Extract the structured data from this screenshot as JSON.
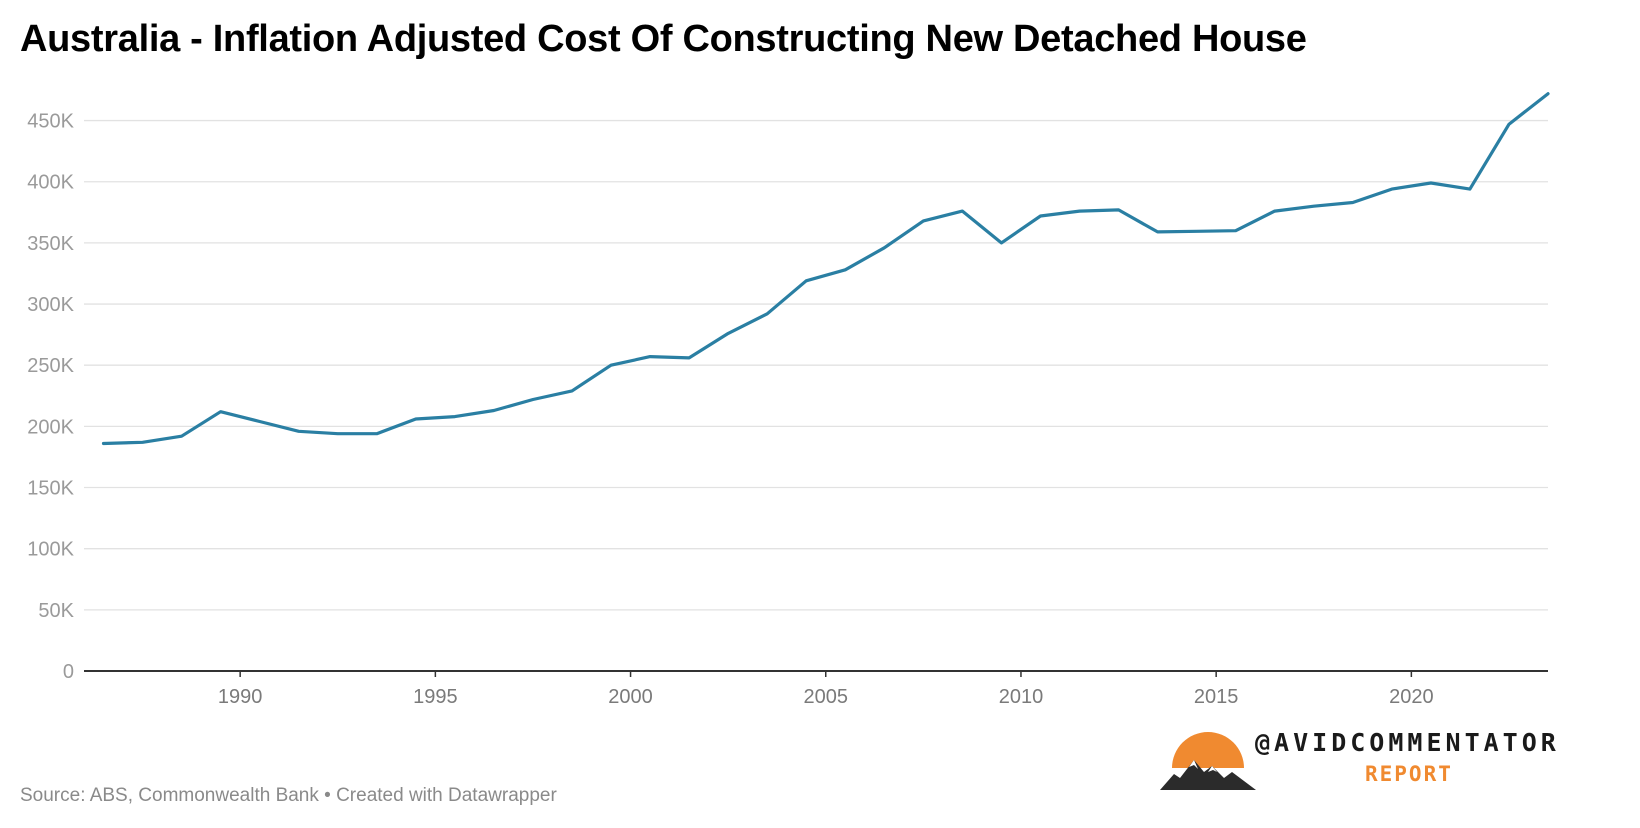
{
  "chart_data": {
    "type": "line",
    "title": "Australia - Inflation Adjusted Cost Of Constructing New Detached House",
    "xlabel": "",
    "ylabel": "",
    "xlim": [
      1986,
      2023.5
    ],
    "ylim": [
      0,
      475000
    ],
    "x_ticks": [
      "1990",
      "1995",
      "2000",
      "2005",
      "2010",
      "2015",
      "2020"
    ],
    "y_ticks": [
      "0",
      "50K",
      "100K",
      "150K",
      "200K",
      "250K",
      "300K",
      "350K",
      "400K",
      "450K"
    ],
    "grid": true,
    "legend": "none",
    "color": "#2a7fa3",
    "series": [
      {
        "x": [
          1986.5,
          1987.5,
          1988.5,
          1989.5,
          1990.5,
          1991.5,
          1992.5,
          1993.5,
          1994.5,
          1995.5,
          1996.5,
          1997.5,
          1998.5,
          1999.5,
          2000.5,
          2001.5,
          2002.5,
          2003.5,
          2004.5,
          2005.5,
          2006.5,
          2007.5,
          2008.5,
          2009.5,
          2010.5,
          2011.5,
          2012.5,
          2013.5,
          2014.5,
          2015.5,
          2016.5,
          2017.5,
          2018.5,
          2019.5,
          2020.5,
          2021.5,
          2022.5,
          2023.5
        ],
        "values": [
          186000,
          187000,
          192000,
          212000,
          204000,
          196000,
          194000,
          194000,
          206000,
          208000,
          213000,
          222000,
          229000,
          250000,
          257000,
          256000,
          276000,
          292000,
          319000,
          328000,
          346000,
          368000,
          376000,
          350000,
          372000,
          376000,
          377000,
          359000,
          359500,
          360000,
          376000,
          380000,
          383000,
          394000,
          399000,
          394000,
          447000,
          472000
        ]
      }
    ]
  },
  "source_note": "Source: ABS, Commonwealth Bank • Created with Datawrapper",
  "brand": {
    "handle": "@AVIDCOMMENTATOR",
    "sub": "REPORT",
    "accent_color": "#f08a30",
    "icon": "sun-over-mountains-icon"
  }
}
